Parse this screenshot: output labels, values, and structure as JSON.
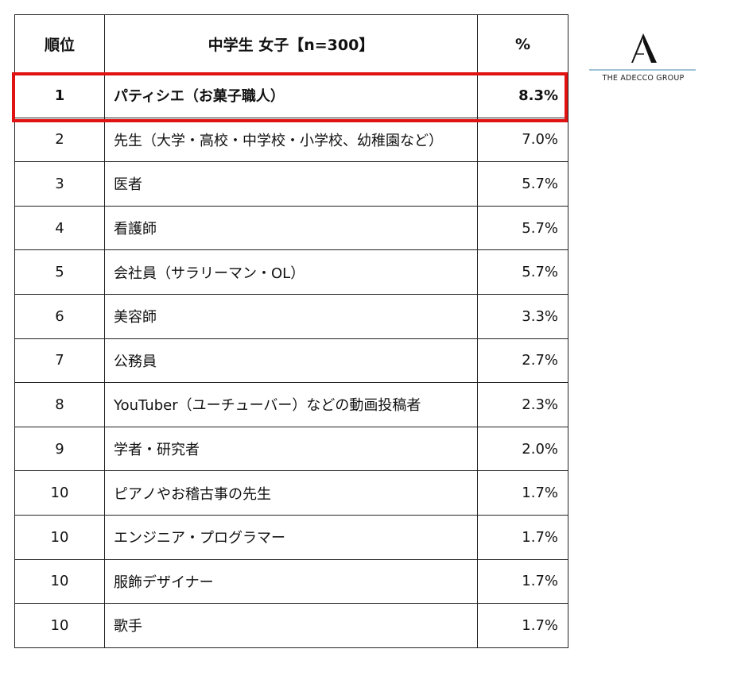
{
  "chart_data": {
    "type": "table",
    "columns": [
      "順位",
      "中学生 女子【n=300】",
      "%"
    ],
    "rows": [
      {
        "rank": "1",
        "job": "パティシエ（お菓子職人）",
        "percent": "8.3%",
        "value": 8.3,
        "highlighted": true
      },
      {
        "rank": "2",
        "job": "先生（大学・高校・中学校・小学校、幼稚園など）",
        "percent": "7.0%",
        "value": 7.0,
        "highlighted": false
      },
      {
        "rank": "3",
        "job": "医者",
        "percent": "5.7%",
        "value": 5.7,
        "highlighted": false
      },
      {
        "rank": "4",
        "job": "看護師",
        "percent": "5.7%",
        "value": 5.7,
        "highlighted": false
      },
      {
        "rank": "5",
        "job": "会社員（サラリーマン・OL）",
        "percent": "5.7%",
        "value": 5.7,
        "highlighted": false
      },
      {
        "rank": "6",
        "job": "美容師",
        "percent": "3.3%",
        "value": 3.3,
        "highlighted": false
      },
      {
        "rank": "7",
        "job": "公務員",
        "percent": "2.7%",
        "value": 2.7,
        "highlighted": false
      },
      {
        "rank": "8",
        "job": "YouTuber（ユーチューバー）などの動画投稿者",
        "percent": "2.3%",
        "value": 2.3,
        "highlighted": false
      },
      {
        "rank": "9",
        "job": "学者・研究者",
        "percent": "2.0%",
        "value": 2.0,
        "highlighted": false
      },
      {
        "rank": "10",
        "job": "ピアノやお稽古事の先生",
        "percent": "1.7%",
        "value": 1.7,
        "highlighted": false
      },
      {
        "rank": "10",
        "job": "エンジニア・プログラマー",
        "percent": "1.7%",
        "value": 1.7,
        "highlighted": false
      },
      {
        "rank": "10",
        "job": "服飾デザイナー",
        "percent": "1.7%",
        "value": 1.7,
        "highlighted": false
      },
      {
        "rank": "10",
        "job": "歌手",
        "percent": "1.7%",
        "value": 1.7,
        "highlighted": false
      }
    ]
  },
  "logo": {
    "text": "THE ADECCO GROUP",
    "mark": "A"
  },
  "colors": {
    "highlight": "#e01212",
    "border": "#222222",
    "logo_rule": "#9fc3d8"
  }
}
